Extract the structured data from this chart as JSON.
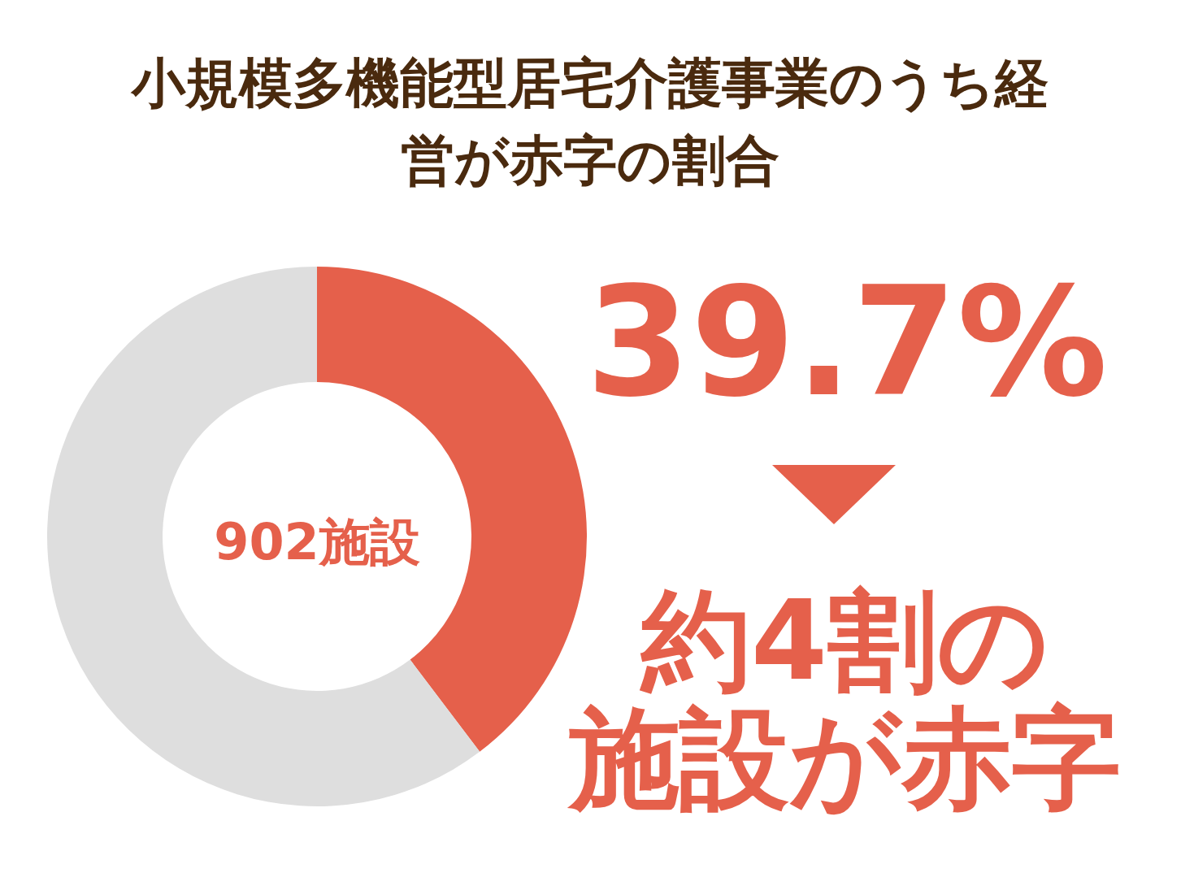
{
  "chart_data": {
    "type": "donut",
    "title": "小規模多機能型居宅介護事業のうち経営が赤字の割合",
    "categories": [
      null,
      null
    ],
    "values": [
      39.7,
      60.3
    ],
    "colors": [
      "#e5604b",
      "#dedede"
    ],
    "annotations": [
      "902施設",
      "39.7%",
      "約4割の",
      "施設が赤字"
    ]
  }
}
